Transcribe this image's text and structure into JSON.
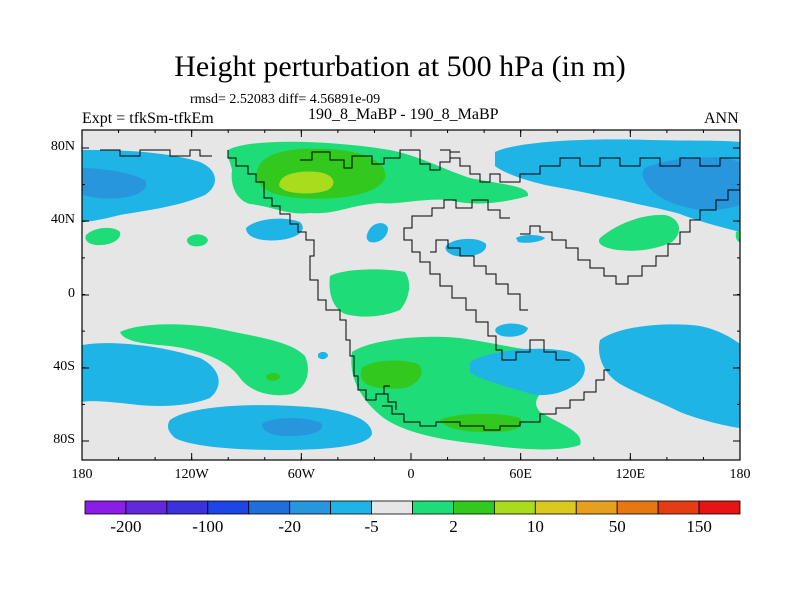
{
  "title": "Height perturbation at 500 hPa (in m)",
  "stats": "rmsd= 2.52083 diff= 4.56891e-09",
  "left_label": "Expt = tfkSm-tfkEm",
  "center_label": "190_8_MaBP - 190_8_MaBP",
  "right_label": "ANN",
  "y_ticks": [
    "80N",
    "40N",
    "0",
    "40S",
    "80S"
  ],
  "x_ticks": [
    "180",
    "120W",
    "60W",
    "0",
    "60E",
    "120E",
    "180"
  ],
  "colorbar": {
    "colors": [
      "#8a1ee6",
      "#6428dc",
      "#3c32dc",
      "#1e46e6",
      "#1e6edc",
      "#2896dc",
      "#1eb4e6",
      "#e6e6e6",
      "#1edc78",
      "#32c81e",
      "#aadc1e",
      "#dcc81e",
      "#e6a01e",
      "#e67814",
      "#e63c14",
      "#e61414"
    ],
    "labels": [
      "-200",
      "-100",
      "-20",
      "-5",
      "2",
      "10",
      "50",
      "150"
    ]
  },
  "colors": {
    "background": "#e6e6e6",
    "light_blue": "#1eb4e6",
    "mid_blue": "#2896dc",
    "green": "#1edc78",
    "dark_green": "#32c81e",
    "lime": "#aadc1e"
  }
}
